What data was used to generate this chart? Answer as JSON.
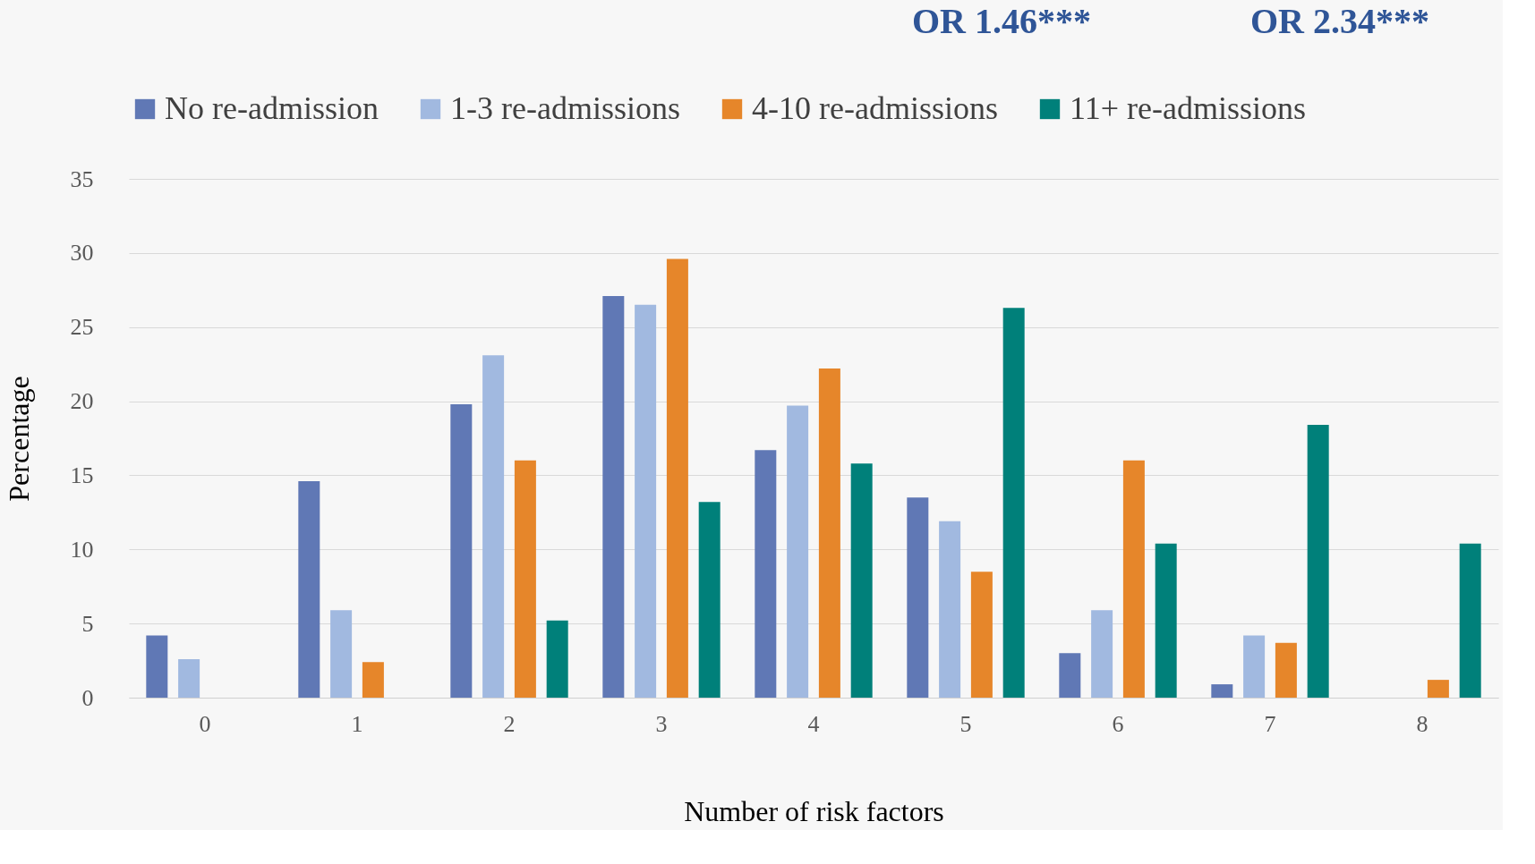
{
  "chart_data": {
    "type": "bar",
    "xlabel": "Number of risk factors",
    "ylabel": "Percentage",
    "annotations": [
      "OR 1.46***",
      "OR 2.34***"
    ],
    "categories": [
      "0",
      "1",
      "2",
      "3",
      "4",
      "5",
      "6",
      "7",
      "8"
    ],
    "series": [
      {
        "name": "No re-admission",
        "color": "#6078b5",
        "values": [
          4.2,
          14.6,
          19.8,
          27.1,
          16.7,
          13.5,
          3.0,
          0.9,
          0
        ]
      },
      {
        "name": "1-3 re-admissions",
        "color": "#a1b9e0",
        "values": [
          2.6,
          5.9,
          23.1,
          26.5,
          19.7,
          11.9,
          5.9,
          4.2,
          0
        ]
      },
      {
        "name": "4-10 re-admissions",
        "color": "#e6862a",
        "values": [
          0,
          2.4,
          16.0,
          29.6,
          22.2,
          8.5,
          16.0,
          3.7,
          1.2
        ]
      },
      {
        "name": "11+ re-admissions",
        "color": "#00807a",
        "values": [
          0,
          0,
          5.2,
          13.2,
          15.8,
          26.3,
          10.4,
          18.4,
          10.4
        ]
      }
    ],
    "ylim": [
      0,
      35
    ],
    "yticks": [
      0,
      5,
      10,
      15,
      20,
      25,
      30,
      35
    ],
    "grid": "y",
    "legend": "top"
  }
}
